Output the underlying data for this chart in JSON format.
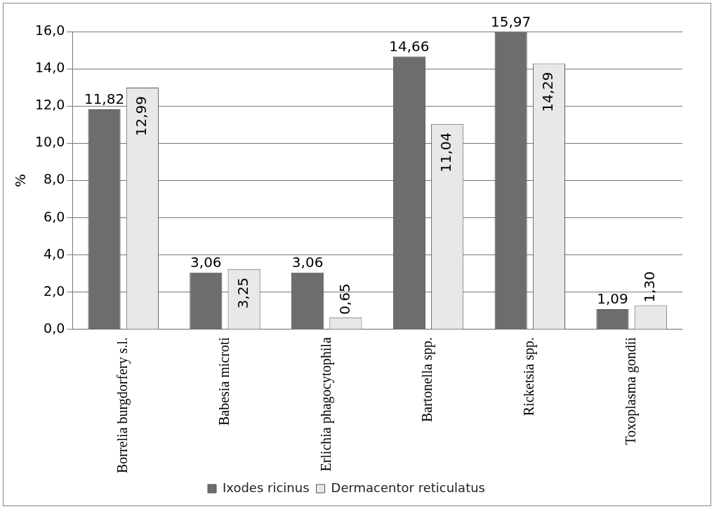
{
  "chart_data": {
    "type": "bar",
    "ylabel": "%",
    "categories": [
      "Borrelia burgdorfery s.l.",
      "Babesia microti",
      "Erlichia phagocytophila",
      "Bartonella spp.",
      "Ricketsia spp.",
      "Toxoplasma gondii"
    ],
    "series": [
      {
        "name": "Ixodes ricinus",
        "color": "#6d6d6d",
        "values": [
          11.82,
          3.06,
          3.06,
          14.66,
          15.97,
          1.09
        ],
        "value_labels": [
          "11,82",
          "3,06",
          "3,06",
          "14,66",
          "15,97",
          "1,09"
        ]
      },
      {
        "name": "Dermacentor reticulatus",
        "color": "#e8e8e8",
        "values": [
          12.99,
          3.25,
          0.65,
          11.04,
          14.29,
          1.3
        ],
        "value_labels": [
          "12,99",
          "3,25",
          "0,65",
          "11,04",
          "14,29",
          "1,30"
        ]
      }
    ],
    "ylim": [
      0,
      16
    ],
    "yticks": [
      {
        "value": 0,
        "label": "0,0"
      },
      {
        "value": 2,
        "label": "2,0"
      },
      {
        "value": 4,
        "label": "4,0"
      },
      {
        "value": 6,
        "label": "6,0"
      },
      {
        "value": 8,
        "label": "8,0"
      },
      {
        "value": 10,
        "label": "10,0"
      },
      {
        "value": 12,
        "label": "12,0"
      },
      {
        "value": 14,
        "label": "14,0"
      },
      {
        "value": 16,
        "label": "16,0"
      }
    ],
    "grid": "y",
    "legend": "bottom"
  }
}
